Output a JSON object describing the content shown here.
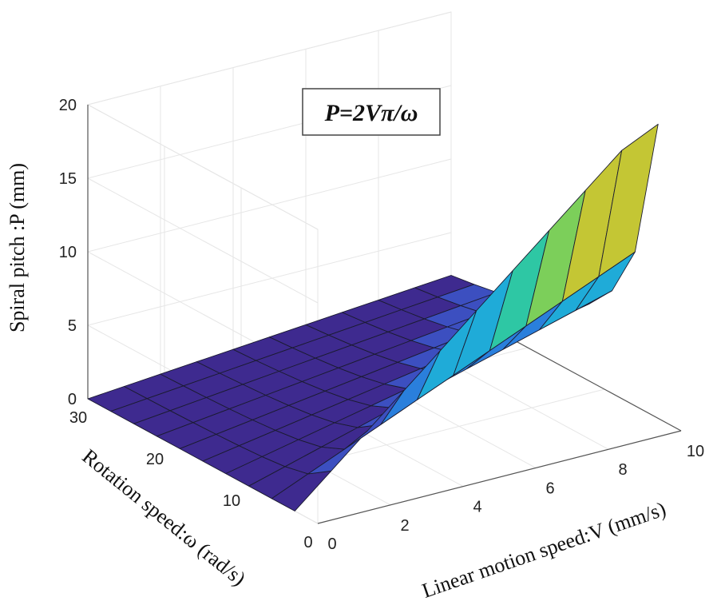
{
  "chart_data": {
    "type": "surface",
    "formula": "P=2Vπ/ω",
    "xlabel": "Linear motion speed:V (mm/s)",
    "ylabel": "Rotation speed:ω (rad/s)",
    "zlabel": "Spiral pitch :P (mm)",
    "xlim": [
      0,
      10
    ],
    "ylim": [
      0,
      30
    ],
    "zlim": [
      0,
      20
    ],
    "x_ticks": [
      0,
      2,
      4,
      6,
      8,
      10
    ],
    "y_ticks": [
      0,
      10,
      20,
      30
    ],
    "z_ticks": [
      0,
      5,
      10,
      15,
      20
    ],
    "x_tick_labels": [
      "0",
      "2",
      "4",
      "6",
      "8",
      "10"
    ],
    "y_tick_labels": [
      "0",
      "10",
      "20",
      "30"
    ],
    "z_tick_labels": [
      "0",
      "5",
      "10",
      "15",
      "20"
    ],
    "x_grid": [
      0,
      1,
      2,
      3,
      4,
      5,
      6,
      7,
      8,
      9,
      10
    ],
    "y_grid": [
      3,
      6,
      9,
      12,
      15,
      18,
      21,
      24,
      27,
      30
    ],
    "z_clip": 20,
    "colormap": [
      "#3e2a8f",
      "#3c4fc0",
      "#2a7fdc",
      "#1fabd8",
      "#2ec7a4",
      "#7ccf5a",
      "#c4c634",
      "#f3b93a",
      "#f9e034"
    ]
  }
}
